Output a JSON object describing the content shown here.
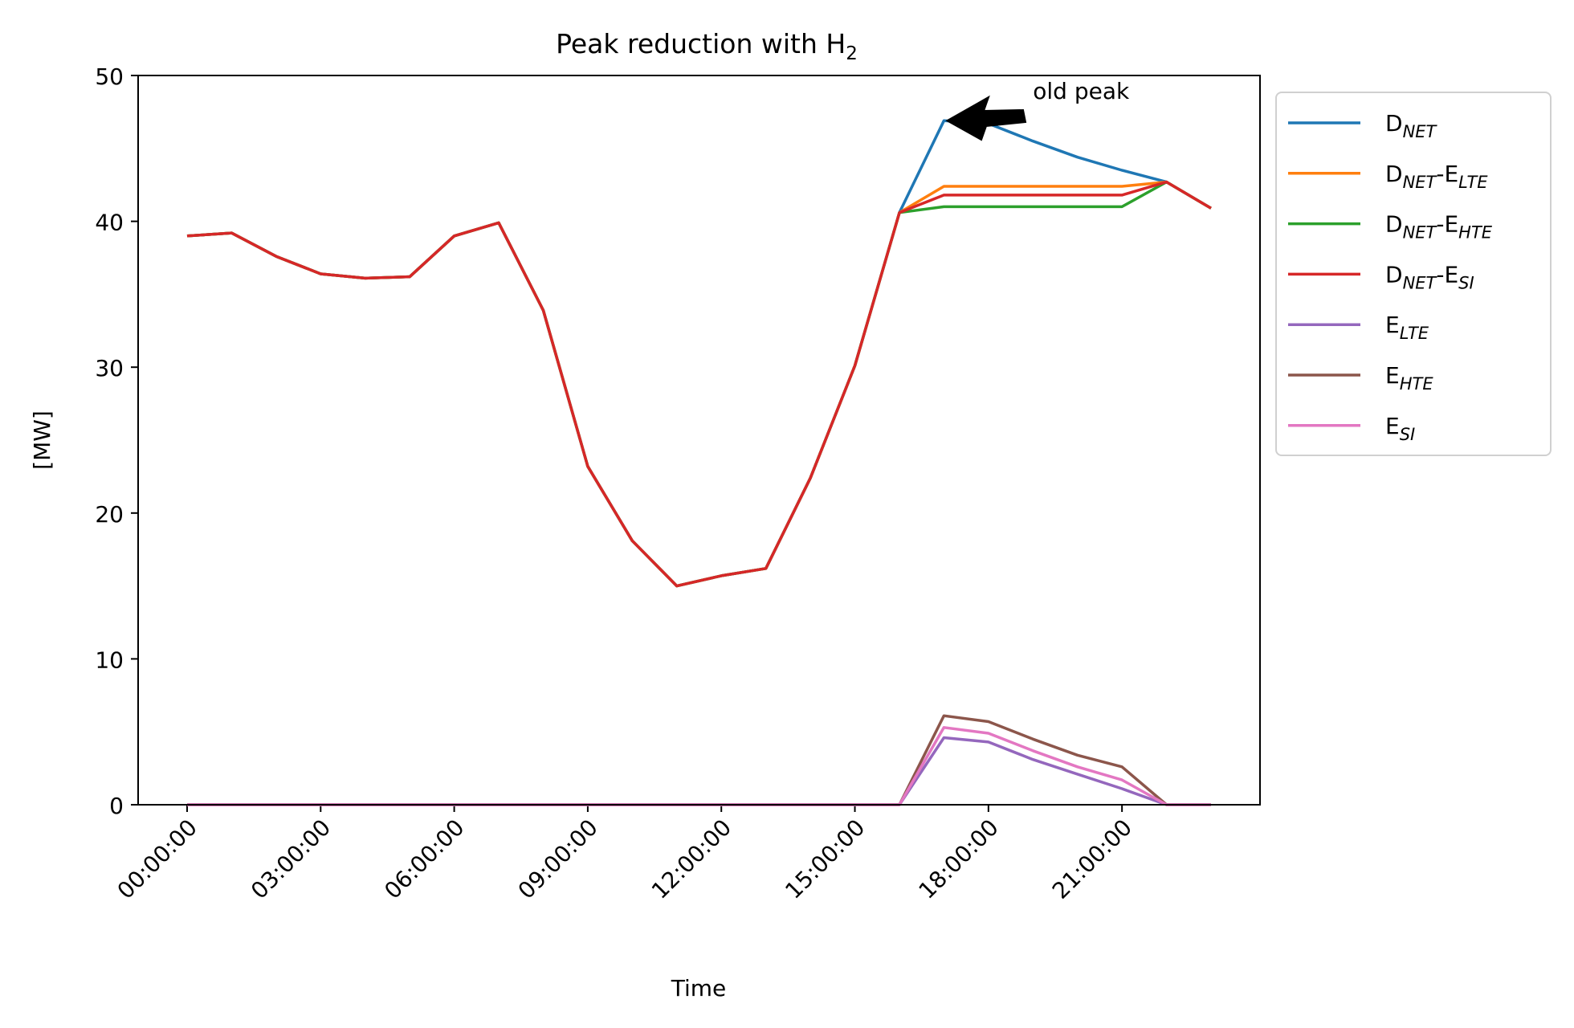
{
  "chart_data": {
    "type": "line",
    "title_main": "Peak reduction with H",
    "title_sub": "2",
    "xlabel": "Time",
    "ylabel": "[MW]",
    "ylim": [
      0,
      50
    ],
    "xlim": [
      -1.1,
      24.1
    ],
    "yticks": [
      0,
      10,
      20,
      30,
      40,
      50
    ],
    "xticks": [
      {
        "x": 0,
        "label": "00:00:00"
      },
      {
        "x": 3,
        "label": "03:00:00"
      },
      {
        "x": 6,
        "label": "06:00:00"
      },
      {
        "x": 9,
        "label": "09:00:00"
      },
      {
        "x": 12,
        "label": "12:00:00"
      },
      {
        "x": 15,
        "label": "15:00:00"
      },
      {
        "x": 18,
        "label": "18:00:00"
      },
      {
        "x": 21,
        "label": "21:00:00"
      }
    ],
    "x": [
      0,
      1,
      2,
      3,
      4,
      5,
      6,
      7,
      8,
      9,
      10,
      11,
      12,
      13,
      14,
      15,
      16,
      17,
      18,
      19,
      20,
      21,
      22,
      23
    ],
    "series": [
      {
        "base": "D",
        "sub": "NET",
        "color": "#1f77b4",
        "values": [
          39.0,
          39.2,
          37.6,
          36.4,
          36.1,
          36.2,
          39.0,
          39.9,
          33.9,
          23.2,
          18.1,
          15.0,
          15.7,
          16.2,
          22.4,
          30.1,
          40.6,
          46.9,
          46.7,
          45.5,
          44.4,
          43.5,
          42.7,
          40.9
        ]
      },
      {
        "base": "D",
        "sub": "NET",
        "base2": "-E",
        "sub2": "LTE",
        "color": "#ff7f0e",
        "values": [
          39.0,
          39.2,
          37.6,
          36.4,
          36.1,
          36.2,
          39.0,
          39.9,
          33.9,
          23.2,
          18.1,
          15.0,
          15.7,
          16.2,
          22.4,
          30.1,
          40.6,
          42.4,
          42.4,
          42.4,
          42.4,
          42.4,
          42.7,
          40.9
        ]
      },
      {
        "base": "D",
        "sub": "NET",
        "base2": "-E",
        "sub2": "HTE",
        "color": "#2ca02c",
        "values": [
          39.0,
          39.2,
          37.6,
          36.4,
          36.1,
          36.2,
          39.0,
          39.9,
          33.9,
          23.2,
          18.1,
          15.0,
          15.7,
          16.2,
          22.4,
          30.1,
          40.6,
          41.0,
          41.0,
          41.0,
          41.0,
          41.0,
          42.7,
          40.9
        ]
      },
      {
        "base": "D",
        "sub": "NET",
        "base2": "-E",
        "sub2": "SI",
        "color": "#d62728",
        "values": [
          39.0,
          39.2,
          37.6,
          36.4,
          36.1,
          36.2,
          39.0,
          39.9,
          33.9,
          23.2,
          18.1,
          15.0,
          15.7,
          16.2,
          22.4,
          30.1,
          40.6,
          41.8,
          41.8,
          41.8,
          41.8,
          41.8,
          42.7,
          40.9
        ]
      },
      {
        "base": "E",
        "sub": "LTE",
        "color": "#9467bd",
        "values": [
          0,
          0,
          0,
          0,
          0,
          0,
          0,
          0,
          0,
          0,
          0,
          0,
          0,
          0,
          0,
          0,
          0,
          4.6,
          4.3,
          3.1,
          2.1,
          1.1,
          0,
          0
        ]
      },
      {
        "base": "E",
        "sub": "HTE",
        "color": "#8c564b",
        "values": [
          0,
          0,
          0,
          0,
          0,
          0,
          0,
          0,
          0,
          0,
          0,
          0,
          0,
          0,
          0,
          0,
          0,
          6.1,
          5.7,
          4.5,
          3.4,
          2.6,
          0,
          0
        ]
      },
      {
        "base": "E",
        "sub": "SI",
        "color": "#e377c2",
        "values": [
          0,
          0,
          0,
          0,
          0,
          0,
          0,
          0,
          0,
          0,
          0,
          0,
          0,
          0,
          0,
          0,
          0,
          5.3,
          4.9,
          3.7,
          2.6,
          1.7,
          0,
          0
        ]
      }
    ],
    "annotation": {
      "text": "old peak",
      "x": 17,
      "y": 46.9,
      "text_x": 19,
      "text_y": 48.5
    },
    "legend_position": "outside upper right",
    "grid": false
  }
}
